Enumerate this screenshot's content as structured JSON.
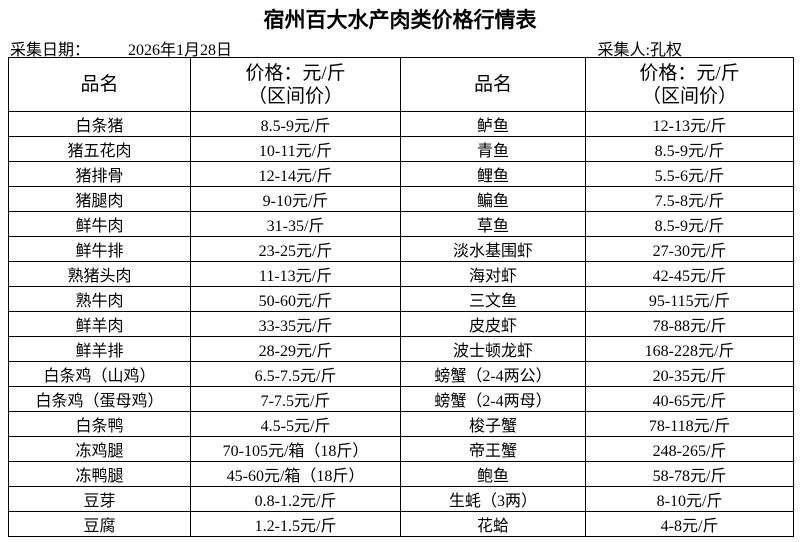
{
  "title": "宿州百大水产肉类价格行情表",
  "date_label": "采集日期：",
  "date": "2026年1月28日",
  "collector": "采集人:孔权",
  "table": {
    "header": [
      [
        "品名"
      ],
      [
        "价格：元/斤",
        "（区间价）"
      ],
      [
        "品名"
      ],
      [
        "价格：元/斤",
        "（区间价）"
      ]
    ],
    "rows": [
      [
        "白条猪",
        "8.5-9元/斤",
        "鲈鱼",
        "12-13元/斤"
      ],
      [
        "猪五花肉",
        "10-11元/斤",
        "青鱼",
        "8.5-9元/斤"
      ],
      [
        "猪排骨",
        "12-14元/斤",
        "鲤鱼",
        "5.5-6元/斤"
      ],
      [
        "猪腿肉",
        "9-10元/斤",
        "鳊鱼",
        "7.5-8元/斤"
      ],
      [
        "鲜牛肉",
        "31-35/斤",
        "草鱼",
        "8.5-9元/斤"
      ],
      [
        "鲜牛排",
        "23-25元/斤",
        "淡水基围虾",
        "27-30元/斤"
      ],
      [
        "熟猪头肉",
        "11-13元/斤",
        "海对虾",
        "42-45元/斤"
      ],
      [
        "熟牛肉",
        "50-60元/斤",
        "三文鱼",
        "95-115元/斤"
      ],
      [
        "鲜羊肉",
        "33-35元/斤",
        "皮皮虾",
        "78-88元/斤"
      ],
      [
        "鲜羊排",
        "28-29元/斤",
        "波士顿龙虾",
        "168-228元/斤"
      ],
      [
        "白条鸡（山鸡）",
        "6.5-7.5元/斤",
        "螃蟹（2-4两公）",
        "20-35元/斤"
      ],
      [
        "白条鸡（蛋母鸡）",
        "7-7.5元/斤",
        "螃蟹（2-4两母）",
        "40-65元/斤"
      ],
      [
        "白条鸭",
        "4.5-5元/斤",
        "梭子蟹",
        "78-118元/斤"
      ],
      [
        "冻鸡腿",
        "70-105元/箱（18斤）",
        "帝王蟹",
        "248-265/斤"
      ],
      [
        "冻鸭腿",
        "45-60元/箱（18斤）",
        "鲍鱼",
        "58-78元/斤"
      ],
      [
        "豆芽",
        "0.8-1.2元/斤",
        "生蚝（3两）",
        "8-10元/斤"
      ],
      [
        "豆腐",
        "1.2-1.5元/斤",
        "花蛤",
        "4-8元/斤"
      ]
    ]
  }
}
